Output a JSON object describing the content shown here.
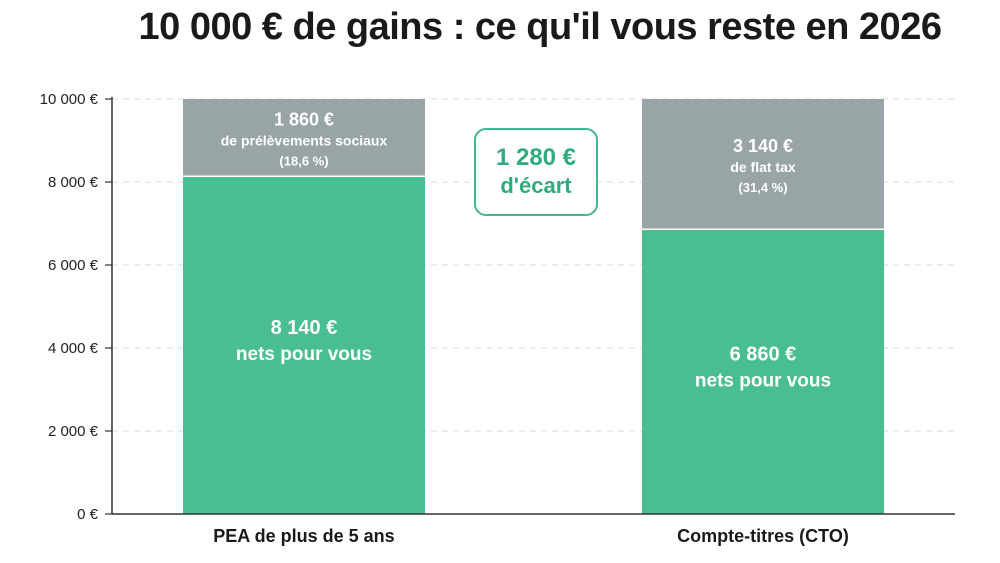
{
  "chart_data": {
    "type": "bar",
    "stacked": true,
    "title": "10 000 € de gains : ce qu'il vous reste en 2026",
    "categories": [
      "PEA de plus de 5 ans",
      "Compte-titres (CTO)"
    ],
    "series": [
      {
        "key": "net",
        "values": [
          8140,
          6860
        ],
        "color": "#49bf91"
      },
      {
        "key": "tax",
        "values": [
          1860,
          3140
        ],
        "color": "#99a4a6"
      }
    ],
    "segment_labels": [
      {
        "net": {
          "value": "8 140 €",
          "desc": "nets pour vous"
        },
        "tax": {
          "value": "1 860 €",
          "desc": "de prélèvements sociaux",
          "rate": "(18,6 %)"
        }
      },
      {
        "net": {
          "value": "6 860 €",
          "desc": "nets pour vous"
        },
        "tax": {
          "value": "3 140 €",
          "desc": "de flat tax",
          "rate": "(31,4 %)"
        }
      }
    ],
    "ylim": [
      0,
      10000
    ],
    "yticks": [
      0,
      2000,
      4000,
      6000,
      8000,
      10000
    ],
    "ytick_labels": [
      "0 €",
      "2 000 €",
      "4 000 €",
      "6 000 €",
      "8 000 €",
      "10 000 €"
    ],
    "grid": true,
    "annotation": {
      "value": "1 280 €",
      "label": "d'écart"
    }
  }
}
